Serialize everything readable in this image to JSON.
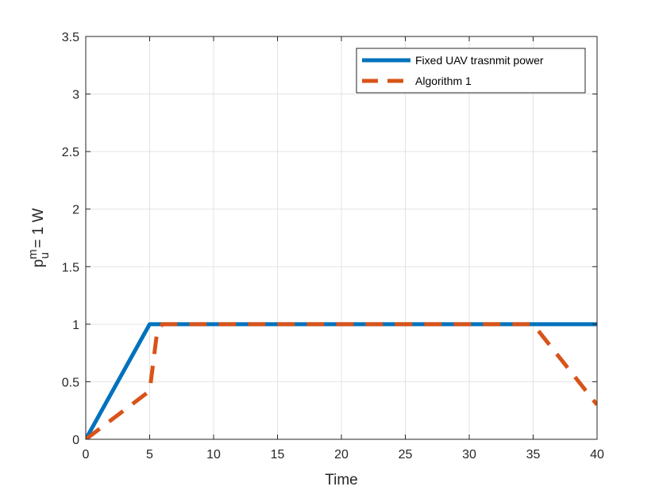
{
  "chart_data": {
    "type": "line",
    "xlabel": "Time",
    "ylabel": {
      "base": "p",
      "superscript": "m",
      "subscript": "u",
      "suffix": " = 1 W"
    },
    "xlim": [
      0,
      40
    ],
    "ylim": [
      0,
      3.5
    ],
    "xticks": [
      0,
      5,
      10,
      15,
      20,
      25,
      30,
      35,
      40
    ],
    "yticks": [
      0,
      0.5,
      1,
      1.5,
      2,
      2.5,
      3,
      3.5
    ],
    "grid": true,
    "legend_position": "top-right",
    "series": [
      {
        "name": "Fixed UAV trasnmit power",
        "style": "solid",
        "color": "#0072BD",
        "x": [
          0,
          5,
          40
        ],
        "y": [
          0,
          1,
          1
        ]
      },
      {
        "name": "Algorithm 1",
        "style": "dashed",
        "color": "#D95319",
        "x": [
          0,
          5,
          5.6,
          6,
          35,
          40
        ],
        "y": [
          0,
          0.42,
          0.95,
          1,
          1,
          0.3
        ]
      }
    ]
  }
}
